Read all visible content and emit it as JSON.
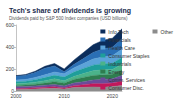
{
  "chart_data": {
    "type": "area",
    "title": "Tech's share of dividends is growing",
    "subtitle": "Dividends paid by S&P 500 Index companies (USD billions)",
    "stacked": true,
    "legend": "right",
    "grid": false,
    "categories": [
      "2000",
      null,
      null,
      null,
      null,
      "2010",
      null,
      null,
      null,
      null,
      "2020",
      null
    ],
    "ylim": [
      0,
      600
    ],
    "yticks": [
      0,
      200,
      400,
      600
    ],
    "series": [
      {
        "name": "Other",
        "color": "#8c8c8c",
        "values": [
          13,
          17,
          19,
          22,
          25,
          18,
          32,
          33,
          37,
          33,
          40,
          49
        ]
      },
      {
        "name": "Consumer Disc.",
        "color": "#c2185b",
        "values": [
          8,
          8,
          10,
          12,
          14,
          10,
          16,
          24,
          30,
          34,
          32,
          40
        ]
      },
      {
        "name": "Comm. Services",
        "color": "#6b4c9a",
        "values": [
          18,
          17,
          17,
          18,
          20,
          18,
          24,
          28,
          34,
          38,
          40,
          52
        ]
      },
      {
        "name": "Energy",
        "color": "#2e7d4f",
        "values": [
          12,
          13,
          16,
          20,
          26,
          25,
          32,
          38,
          40,
          42,
          40,
          52
        ]
      },
      {
        "name": "Industrials",
        "color": "#4bb38a",
        "values": [
          15,
          15,
          18,
          22,
          26,
          22,
          28,
          35,
          42,
          46,
          44,
          50
        ]
      },
      {
        "name": "Consumer Staples",
        "color": "#1f9e9a",
        "values": [
          18,
          19,
          23,
          28,
          32,
          34,
          40,
          47,
          52,
          55,
          56,
          62
        ]
      },
      {
        "name": "Health Care",
        "color": "#5ba3d9",
        "values": [
          15,
          16,
          20,
          25,
          30,
          30,
          38,
          45,
          55,
          62,
          68,
          75
        ]
      },
      {
        "name": "Financials",
        "color": "#2a6fb5",
        "values": [
          35,
          38,
          45,
          60,
          55,
          18,
          30,
          45,
          60,
          72,
          78,
          95
        ]
      },
      {
        "name": "Info Tech",
        "color": "#0b2d5b",
        "values": [
          6,
          7,
          12,
          18,
          22,
          25,
          40,
          55,
          70,
          78,
          82,
          90
        ]
      }
    ]
  }
}
